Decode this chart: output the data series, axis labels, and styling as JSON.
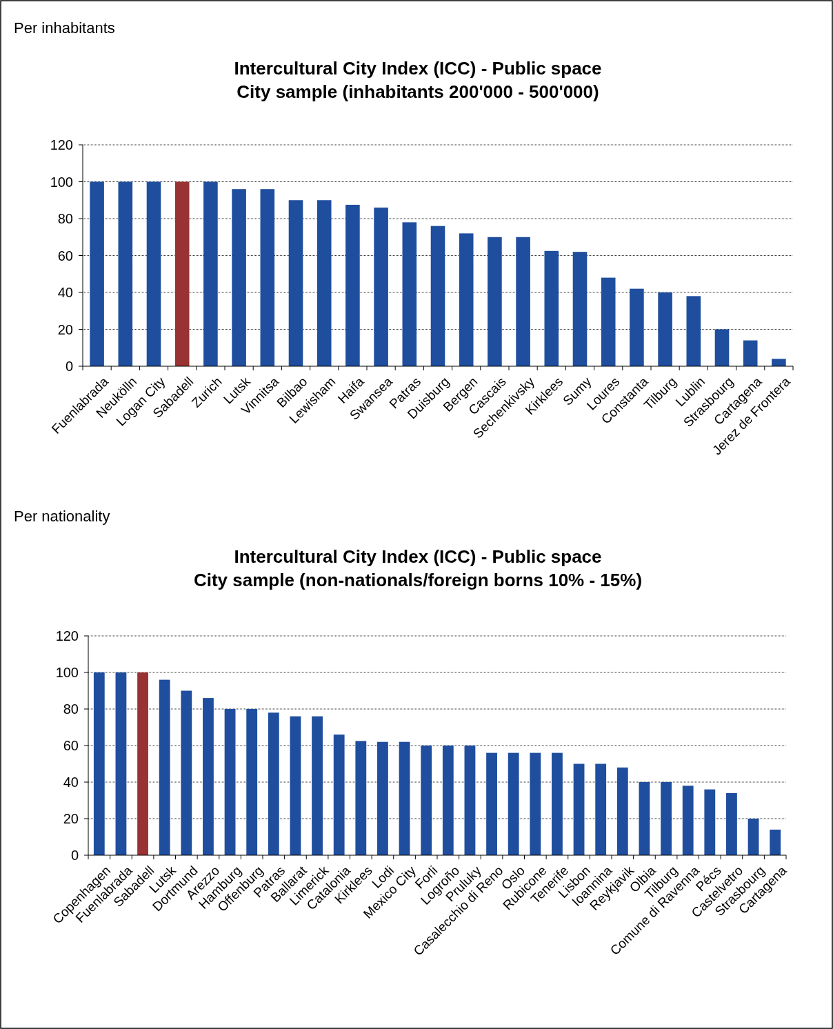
{
  "chart_data": [
    {
      "type": "bar",
      "title": "Intercultural City Index (ICC) - Public space\nCity sample (inhabitants 200'000 - 500'000)",
      "annotations": [
        "Per inhabitants"
      ],
      "categories": [
        "Fuenlabrada",
        "Neukölln",
        "Logan City",
        "Sabadell",
        "Zurich",
        "Lutsk",
        "Vinnitsa",
        "Bilbao",
        "Lewisham",
        "Haifa",
        "Swansea",
        "Patras",
        "Duisburg",
        "Bergen",
        "Cascais",
        "Sechenkivsky",
        "Kirklees",
        "Sumy",
        "Loures",
        "Constanta",
        "Tilburg",
        "Lublin",
        "Strasbourg",
        "Cartagena",
        "Jerez de Frontera"
      ],
      "values": [
        100,
        100,
        100,
        100,
        100,
        96,
        96,
        90,
        90,
        87.5,
        86,
        78,
        76,
        72,
        70,
        70,
        62.5,
        62,
        48,
        42,
        40,
        38,
        20,
        14,
        4
      ],
      "colors": [
        "#1f4e9e",
        "#1f4e9e",
        "#1f4e9e",
        "#993333",
        "#1f4e9e",
        "#1f4e9e",
        "#1f4e9e",
        "#1f4e9e",
        "#1f4e9e",
        "#1f4e9e",
        "#1f4e9e",
        "#1f4e9e",
        "#1f4e9e",
        "#1f4e9e",
        "#1f4e9e",
        "#1f4e9e",
        "#1f4e9e",
        "#1f4e9e",
        "#1f4e9e",
        "#1f4e9e",
        "#1f4e9e",
        "#1f4e9e",
        "#1f4e9e",
        "#1f4e9e",
        "#1f4e9e"
      ],
      "ylim": [
        0,
        120
      ],
      "yticks": [
        0,
        20,
        40,
        60,
        80,
        100,
        120
      ],
      "grid": "y"
    },
    {
      "type": "bar",
      "title": "Intercultural City Index (ICC) - Public space\nCity sample (non-nationals/foreign borns 10% - 15%)",
      "annotations": [
        "Per nationality"
      ],
      "categories": [
        "Copenhagen",
        "Fuenlabrada",
        "Sabadell",
        "Lutsk",
        "Dortmund",
        "Arezzo",
        "Hamburg",
        "Offenburg",
        "Patras",
        "Ballarat",
        "Limerick",
        "Catalonia",
        "Kirklees",
        "Lodi",
        "Mexico City",
        "Forli",
        "Logroño",
        "Pruluky",
        "Casalecchio di Reno",
        "Oslo",
        "Rubicone",
        "Tenerife",
        "Lisbon",
        "Ioannina",
        "Reykjavik",
        "Olbia",
        "Tilburg",
        "Comune di Ravenna",
        "Pécs",
        "Castelvetro",
        "Strasbourg",
        "Cartagena"
      ],
      "values": [
        100,
        100,
        100,
        96,
        90,
        86,
        80,
        80,
        78,
        76,
        76,
        66,
        62.5,
        62,
        62,
        60,
        60,
        60,
        56,
        56,
        56,
        56,
        50,
        50,
        48,
        40,
        40,
        38,
        36,
        34,
        20,
        14
      ],
      "colors": [
        "#1f4e9e",
        "#1f4e9e",
        "#993333",
        "#1f4e9e",
        "#1f4e9e",
        "#1f4e9e",
        "#1f4e9e",
        "#1f4e9e",
        "#1f4e9e",
        "#1f4e9e",
        "#1f4e9e",
        "#1f4e9e",
        "#1f4e9e",
        "#1f4e9e",
        "#1f4e9e",
        "#1f4e9e",
        "#1f4e9e",
        "#1f4e9e",
        "#1f4e9e",
        "#1f4e9e",
        "#1f4e9e",
        "#1f4e9e",
        "#1f4e9e",
        "#1f4e9e",
        "#1f4e9e",
        "#1f4e9e",
        "#1f4e9e",
        "#1f4e9e",
        "#1f4e9e",
        "#1f4e9e",
        "#1f4e9e",
        "#1f4e9e"
      ],
      "ylim": [
        0,
        120
      ],
      "yticks": [
        0,
        20,
        40,
        60,
        80,
        100,
        120
      ],
      "grid": "y"
    }
  ]
}
